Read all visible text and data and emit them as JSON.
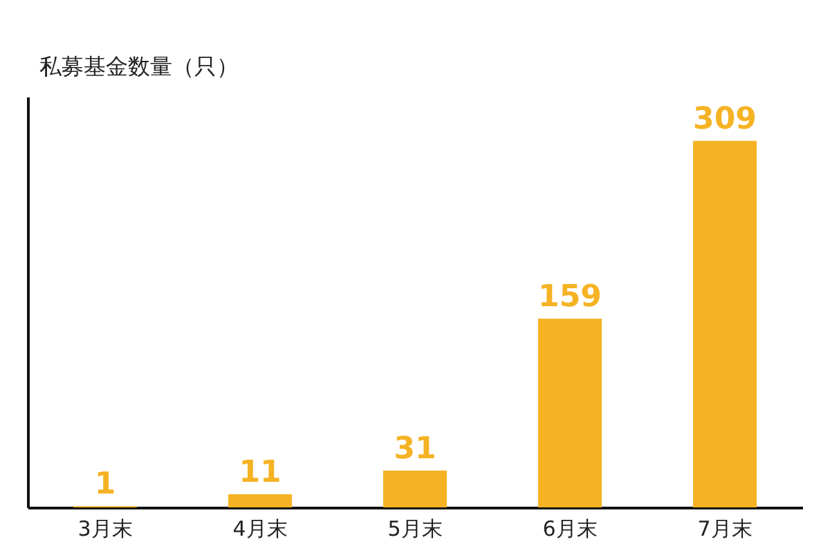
{
  "chart_data": {
    "type": "bar",
    "ylabel": "私募基金数量（只）",
    "categories": [
      "3月末",
      "4月末",
      "5月末",
      "6月末",
      "7月末"
    ],
    "values": [
      1,
      11,
      31,
      159,
      309
    ],
    "color": "#f5b324",
    "data_labels": true
  }
}
